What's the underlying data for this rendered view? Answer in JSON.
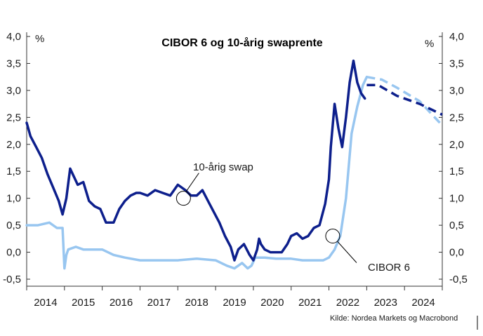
{
  "chart_data": {
    "type": "line",
    "title": "CIBOR 6 og 10-årig swaprente",
    "y_unit_left": "%",
    "y_unit_right": "%",
    "ylim": [
      -0.5,
      4.0
    ],
    "y_ticks": [
      "4,0",
      "3,5",
      "3,0",
      "2,5",
      "2,0",
      "1,5",
      "1,0",
      "0,5",
      "0,0",
      "-0,5"
    ],
    "y_tick_values": [
      4.0,
      3.5,
      3.0,
      2.5,
      2.0,
      1.5,
      1.0,
      0.5,
      0.0,
      -0.5
    ],
    "x_ticks": [
      "2014",
      "2015",
      "2016",
      "2017",
      "2018",
      "2019",
      "2020",
      "2021",
      "2022",
      "2023",
      "2024"
    ],
    "xlim": [
      2014.0,
      2025.0
    ],
    "grid": false,
    "source": "Kilde: Nordea Markets og Macrobond",
    "series": [
      {
        "name": "10-årig swap",
        "color": "#0d1f8c",
        "x": [
          2014.0,
          2014.1,
          2014.25,
          2014.4,
          2014.55,
          2014.7,
          2014.85,
          2014.95,
          2015.05,
          2015.15,
          2015.25,
          2015.35,
          2015.5,
          2015.65,
          2015.8,
          2015.95,
          2016.1,
          2016.3,
          2016.45,
          2016.6,
          2016.75,
          2016.9,
          2017.0,
          2017.2,
          2017.4,
          2017.6,
          2017.8,
          2018.0,
          2018.2,
          2018.35,
          2018.5,
          2018.65,
          2018.8,
          2018.95,
          2019.1,
          2019.25,
          2019.4,
          2019.5,
          2019.6,
          2019.75,
          2019.9,
          2020.0,
          2020.1,
          2020.15,
          2020.2,
          2020.3,
          2020.45,
          2020.6,
          2020.75,
          2020.9,
          2021.0,
          2021.15,
          2021.3,
          2021.45,
          2021.6,
          2021.75,
          2021.9,
          2022.0,
          2022.05,
          2022.15,
          2022.25,
          2022.35,
          2022.45,
          2022.55,
          2022.65,
          2022.75,
          2022.85,
          2022.95
        ],
        "values": [
          2.4,
          2.15,
          1.95,
          1.75,
          1.45,
          1.2,
          0.95,
          0.7,
          1.0,
          1.55,
          1.4,
          1.25,
          1.3,
          0.95,
          0.85,
          0.8,
          0.55,
          0.55,
          0.8,
          0.95,
          1.05,
          1.1,
          1.1,
          1.05,
          1.15,
          1.1,
          1.05,
          1.25,
          1.15,
          1.05,
          1.05,
          1.15,
          0.95,
          0.75,
          0.55,
          0.3,
          0.1,
          -0.15,
          0.05,
          0.15,
          -0.05,
          -0.15,
          0.05,
          0.25,
          0.15,
          0.05,
          0.0,
          0.0,
          0.0,
          0.15,
          0.3,
          0.35,
          0.25,
          0.3,
          0.45,
          0.5,
          0.9,
          1.35,
          1.95,
          2.75,
          2.3,
          1.95,
          2.5,
          3.15,
          3.55,
          3.15,
          2.95,
          2.85
        ]
      },
      {
        "name": "10-årig swap (prognose)",
        "color": "#0d1f8c",
        "dashed": true,
        "x": [
          2023.0,
          2023.3,
          2023.8,
          2024.4,
          2025.0
        ],
        "values": [
          3.1,
          3.1,
          2.9,
          2.75,
          2.55
        ]
      },
      {
        "name": "CIBOR 6",
        "color": "#98c6f0",
        "x": [
          2014.0,
          2014.3,
          2014.6,
          2014.8,
          2014.95,
          2015.0,
          2015.05,
          2015.1,
          2015.3,
          2015.5,
          2015.7,
          2016.0,
          2016.3,
          2016.6,
          2017.0,
          2017.5,
          2018.0,
          2018.5,
          2019.0,
          2019.3,
          2019.5,
          2019.7,
          2019.85,
          2019.95,
          2020.05,
          2020.3,
          2020.6,
          2021.0,
          2021.3,
          2021.6,
          2021.85,
          2022.0,
          2022.15,
          2022.3,
          2022.45,
          2022.6,
          2022.75,
          2022.9,
          2023.0
        ],
        "values": [
          0.5,
          0.5,
          0.55,
          0.45,
          0.45,
          -0.3,
          -0.05,
          0.05,
          0.1,
          0.05,
          0.05,
          0.05,
          -0.05,
          -0.1,
          -0.15,
          -0.15,
          -0.15,
          -0.12,
          -0.15,
          -0.25,
          -0.3,
          -0.2,
          -0.3,
          -0.25,
          -0.1,
          -0.1,
          -0.12,
          -0.12,
          -0.15,
          -0.15,
          -0.15,
          -0.1,
          0.05,
          0.3,
          1.0,
          2.2,
          2.7,
          3.1,
          3.25
        ]
      },
      {
        "name": "CIBOR 6 (prognose)",
        "color": "#98c6f0",
        "dashed": true,
        "x": [
          2023.0,
          2023.4,
          2023.8,
          2024.4,
          2025.0
        ],
        "values": [
          3.25,
          3.2,
          3.05,
          2.8,
          2.35
        ]
      }
    ],
    "annotations": [
      {
        "label": "10-årig swap",
        "x": 2018.15,
        "y": 1.0
      },
      {
        "label": "CIBOR 6",
        "x": 2022.1,
        "y": 0.3
      }
    ]
  }
}
